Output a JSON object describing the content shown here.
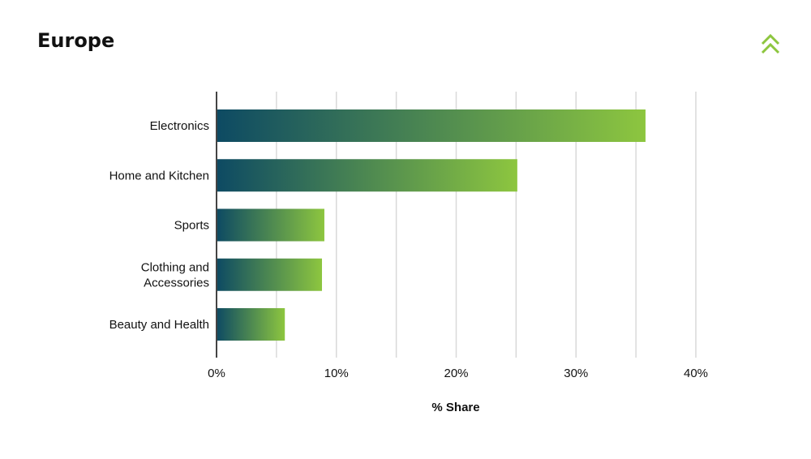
{
  "page": {
    "title": "Europe"
  },
  "logo": {
    "icon": "double-chevron-up-icon",
    "color": "#8dc63f"
  },
  "chart_data": {
    "type": "bar",
    "orientation": "horizontal",
    "categories": [
      "Electronics",
      "Home and Kitchen",
      "Sports",
      "Clothing and Accessories",
      "Beauty and Health"
    ],
    "category_lines": [
      [
        "Electronics"
      ],
      [
        "Home and Kitchen"
      ],
      [
        "Sports"
      ],
      [
        "Clothing and",
        "Accessories"
      ],
      [
        "Beauty and Health"
      ]
    ],
    "values": [
      35.8,
      25.1,
      9.0,
      8.8,
      5.7
    ],
    "xlabel": "% Share",
    "ylabel": "",
    "xlim": [
      0,
      40
    ],
    "ticks": [
      0,
      10,
      20,
      30,
      40
    ],
    "tick_labels": [
      "0%",
      "10%",
      "20%",
      "30%",
      "40%"
    ],
    "grid": true,
    "colors": {
      "bar_start": "#0d4a63",
      "bar_end": "#8dc63f",
      "grid": "#d9d9d9",
      "axis": "#444444"
    }
  }
}
